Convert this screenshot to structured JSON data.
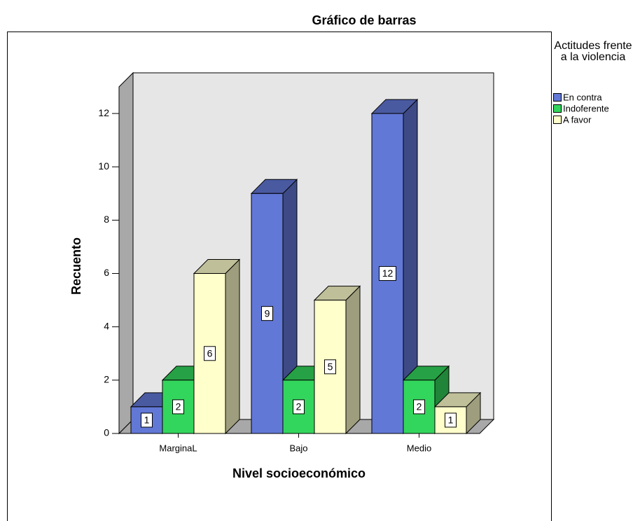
{
  "chart_data": {
    "type": "bar3d",
    "title": "Gráfico de barras",
    "x_label": "Nivel socioeconómico",
    "y_label": "Recuento",
    "legend_title": "Actitudes frente a la violencia",
    "categories": [
      "MarginaL",
      "Bajo",
      "Medio"
    ],
    "series": [
      {
        "name": "En contra",
        "color": "#6278d6",
        "values": [
          1,
          9,
          12
        ]
      },
      {
        "name": "Indoferente",
        "color": "#33d65c",
        "values": [
          2,
          2,
          2
        ]
      },
      {
        "name": "A favor",
        "color": "#ffffcc",
        "values": [
          6,
          5,
          1
        ]
      }
    ],
    "ylim": [
      0,
      13
    ],
    "yticks": [
      0,
      2,
      4,
      6,
      8,
      10,
      12
    ],
    "grid": false
  }
}
